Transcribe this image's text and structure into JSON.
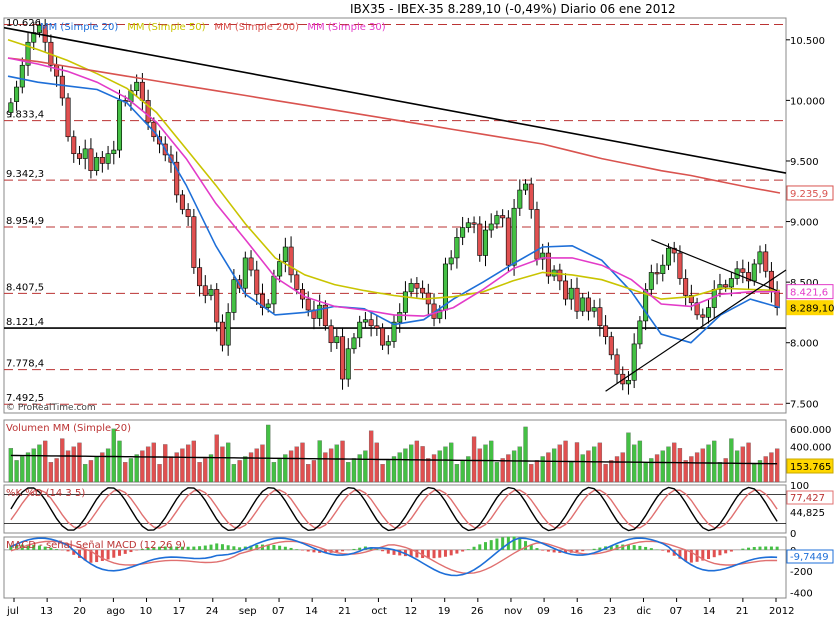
{
  "title": "IBX35 - IBEX-35   8.289,10 (-0,49%)   Diario  06 ene 2012",
  "watermark": "© ProRealTime.com",
  "watermark_bottom": "© ProRealTime.com",
  "price_panel": {
    "top_label": "10.626",
    "ma_legend": [
      {
        "label": "MM (Simple 20)",
        "color": "#1e6fd8"
      },
      {
        "label": "MM (Simple 50)",
        "color": "#c9c400"
      },
      {
        "label": "MM (Simple 200)",
        "color": "#d9534f"
      },
      {
        "label": "MM (Simple 30)",
        "color": "#e33bc8"
      }
    ],
    "y_ticks": [
      "10.500",
      "10.000",
      "9.500",
      "9.000",
      "8.500",
      "8.000",
      "7.500"
    ],
    "hlines": [
      {
        "label": "9.833,4",
        "value": 9833.4
      },
      {
        "label": "9.342,3",
        "value": 9342.3
      },
      {
        "label": "8.954,9",
        "value": 8954.9
      },
      {
        "label": "8.407,5",
        "value": 8407.5
      },
      {
        "label": "8.121,4",
        "value": 8121.4,
        "solid": true
      },
      {
        "label": "7.778,4",
        "value": 7778.4
      },
      {
        "label": "7.492,5",
        "value": 7492.5
      }
    ],
    "badges": [
      {
        "label": "9.235,9",
        "color": "#d9534f",
        "value": 9235.9
      },
      {
        "label": "8.421,6",
        "color": "#e33bc8",
        "value": 8421.6
      },
      {
        "label": "8.289,10",
        "color": "#ffd700",
        "value": 8289.1
      }
    ]
  },
  "volume_panel": {
    "legend": "Volumen MM (Simple 20)",
    "y_ticks": [
      "600.000",
      "400.000",
      "200.000"
    ],
    "badge": "153.765"
  },
  "stoch_panel": {
    "legend": "%K %D (14 3 5)",
    "y_ticks": [
      "100",
      "0"
    ],
    "badges": [
      "77,427",
      "44,825"
    ]
  },
  "macd_panel": {
    "legend": "MACD - señal Señal MACD (12 26 9)",
    "y_ticks": [
      "0",
      "-200",
      "-400"
    ],
    "badge": "-9,7449"
  },
  "x_labels": [
    "jul",
    "13",
    "20",
    "ago",
    "10",
    "17",
    "24",
    "sep",
    "07",
    "14",
    "21",
    "oct",
    "12",
    "19",
    "26",
    "nov",
    "09",
    "16",
    "23",
    "dic",
    "07",
    "14",
    "21",
    "2012"
  ],
  "chart_data": {
    "type": "candlestick",
    "title": "IBX35 - IBEX-35 8.289,10 (-0,49%) Diario 06 ene 2012",
    "ylim": [
      7420,
      10680
    ],
    "x_labels": [
      "jul",
      "13",
      "20",
      "ago",
      "10",
      "17",
      "24",
      "sep",
      "07",
      "14",
      "21",
      "oct",
      "12",
      "19",
      "26",
      "nov",
      "09",
      "16",
      "23",
      "dic",
      "07",
      "14",
      "21",
      "2012"
    ],
    "close": [
      9980,
      10110,
      10290,
      10480,
      10560,
      10620,
      10480,
      10290,
      10200,
      10020,
      9700,
      9560,
      9520,
      9600,
      9420,
      9530,
      9480,
      9560,
      9590,
      10000,
      9990,
      10080,
      10150,
      10000,
      9820,
      9700,
      9640,
      9550,
      9490,
      9220,
      9100,
      9040,
      8620,
      8470,
      8390,
      8440,
      8170,
      7980,
      8250,
      8520,
      8450,
      8700,
      8600,
      8400,
      8290,
      8320,
      8550,
      8670,
      8790,
      8560,
      8440,
      8360,
      8270,
      8200,
      8310,
      8140,
      8000,
      8050,
      7700,
      7950,
      8040,
      8170,
      8190,
      8140,
      8120,
      7980,
      8010,
      8170,
      8250,
      8420,
      8490,
      8450,
      8410,
      8320,
      8200,
      8270,
      8650,
      8700,
      8870,
      8950,
      8990,
      8980,
      8720,
      8930,
      8980,
      9050,
      9030,
      8640,
      9110,
      9260,
      9310,
      9100,
      8690,
      8740,
      8550,
      8600,
      8510,
      8360,
      8450,
      8260,
      8370,
      8260,
      8290,
      8140,
      8050,
      7900,
      7740,
      7660,
      7690,
      7990,
      8180,
      8440,
      8580,
      8570,
      8640,
      8780,
      8740,
      8530,
      8390,
      8330,
      8230,
      8210,
      8290,
      8440,
      8480,
      8460,
      8530,
      8610,
      8580,
      8510,
      8650,
      8750,
      8590,
      8420,
      8289
    ],
    "open": [
      9900,
      9990,
      10110,
      10290,
      10480,
      10560,
      10620,
      10480,
      10290,
      10200,
      10020,
      9700,
      9560,
      9520,
      9600,
      9420,
      9530,
      9480,
      9560,
      9590,
      10000,
      9990,
      10080,
      10150,
      10000,
      9820,
      9700,
      9640,
      9550,
      9490,
      9220,
      9100,
      9040,
      8620,
      8470,
      8390,
      8440,
      8170,
      7980,
      8250,
      8520,
      8450,
      8700,
      8600,
      8400,
      8290,
      8320,
      8550,
      8670,
      8790,
      8560,
      8440,
      8360,
      8270,
      8200,
      8310,
      8140,
      8000,
      8050,
      7700,
      7950,
      8040,
      8170,
      8190,
      8140,
      8120,
      7980,
      8010,
      8170,
      8250,
      8420,
      8490,
      8450,
      8410,
      8320,
      8200,
      8270,
      8650,
      8700,
      8870,
      8950,
      8990,
      8980,
      8720,
      8930,
      8980,
      9050,
      9030,
      8640,
      9110,
      9260,
      9310,
      9100,
      8690,
      8740,
      8550,
      8600,
      8510,
      8360,
      8450,
      8260,
      8370,
      8260,
      8290,
      8140,
      8050,
      7900,
      7740,
      7660,
      7690,
      7990,
      8180,
      8440,
      8580,
      8570,
      8640,
      8780,
      8740,
      8530,
      8390,
      8330,
      8230,
      8210,
      8290,
      8440,
      8480,
      8460,
      8530,
      8610,
      8580,
      8510,
      8650,
      8750,
      8590,
      8420
    ],
    "series": [
      {
        "name": "MM (Simple 20)",
        "color": "#1e6fd8",
        "values": [
          10200,
          10150,
          10120,
          10090,
          9980,
          9720,
          9300,
          8800,
          8400,
          8230,
          8250,
          8300,
          8280,
          8150,
          8190,
          8360,
          8500,
          8650,
          8790,
          8800,
          8680,
          8420,
          8070,
          8000,
          8230,
          8360,
          8290
        ]
      },
      {
        "name": "MM (Simple 50)",
        "color": "#c9c400",
        "values": [
          10500,
          10420,
          10330,
          10220,
          10100,
          9900,
          9600,
          9300,
          8980,
          8700,
          8560,
          8480,
          8430,
          8390,
          8360,
          8380,
          8420,
          8510,
          8580,
          8560,
          8520,
          8440,
          8360,
          8380,
          8450,
          8440,
          8430
        ]
      },
      {
        "name": "MM (Simple 200)",
        "color": "#d9534f",
        "values": [
          10350,
          10320,
          10280,
          10240,
          10200,
          10160,
          10120,
          10080,
          10040,
          10000,
          9960,
          9920,
          9880,
          9840,
          9800,
          9760,
          9720,
          9680,
          9640,
          9580,
          9520,
          9470,
          9420,
          9380,
          9330,
          9280,
          9236
        ]
      },
      {
        "name": "MM (Simple 30)",
        "color": "#e33bc8",
        "values": [
          10350,
          10300,
          10240,
          10150,
          10020,
          9820,
          9520,
          9150,
          8850,
          8540,
          8380,
          8300,
          8270,
          8230,
          8220,
          8290,
          8440,
          8610,
          8700,
          8700,
          8640,
          8520,
          8320,
          8300,
          8400,
          8420,
          8422
        ]
      }
    ]
  }
}
